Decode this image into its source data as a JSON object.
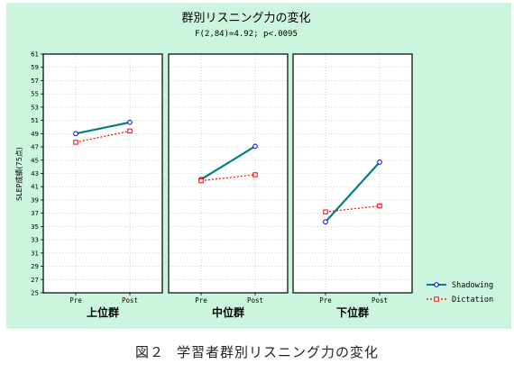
{
  "chart_data": {
    "type": "line",
    "title": "群別リスニング力の変化",
    "subtitle": "F(2,84)=4.92; p<.0095",
    "ylabel": "SLEP成績(75点)",
    "ylim": [
      25,
      61
    ],
    "yticks": [
      25,
      27,
      29,
      31,
      33,
      35,
      37,
      39,
      41,
      43,
      45,
      47,
      49,
      51,
      53,
      55,
      57,
      59,
      61
    ],
    "x": [
      "Pre",
      "Post"
    ],
    "grid": true,
    "legend_position": "right",
    "panels": [
      {
        "label": "上位群",
        "series": [
          {
            "name": "Shadowing",
            "values": [
              49.0,
              50.7
            ]
          },
          {
            "name": "Dictation",
            "values": [
              47.7,
              49.4
            ]
          }
        ]
      },
      {
        "label": "中位群",
        "series": [
          {
            "name": "Shadowing",
            "values": [
              42.1,
              47.1
            ]
          },
          {
            "name": "Dictation",
            "values": [
              41.9,
              42.8
            ]
          }
        ]
      },
      {
        "label": "下位群",
        "series": [
          {
            "name": "Shadowing",
            "values": [
              35.7,
              44.7
            ]
          },
          {
            "name": "Dictation",
            "values": [
              37.2,
              38.1
            ]
          }
        ]
      }
    ],
    "colors": {
      "Shadowing": "#008080",
      "Dictation": "#ff0000",
      "marker_shadowing": "#0000cc",
      "marker_dictation": "#ff0000"
    }
  },
  "caption": {
    "fig": "図２",
    "text": "学習者群別リスニング力の変化"
  }
}
